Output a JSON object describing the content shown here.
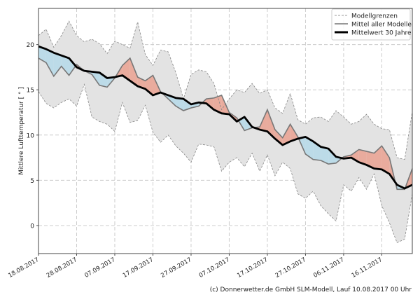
{
  "footer": "(c) Donnerwetter.de GmbH SLM-Modell, Lauf 10.08.2017 00 Uhr",
  "chart_data": {
    "type": "line",
    "title": "",
    "xlabel": "",
    "ylabel": "Mittlere Lufttemperatur [ ° ]",
    "xlim": [
      "18.08.2017",
      "24.11.2017"
    ],
    "ylim": [
      -3.1,
      24
    ],
    "y_ticks": [
      0,
      5,
      10,
      15,
      20
    ],
    "x_ticks": [
      "18.08.2017",
      "28.08.2017",
      "07.09.2017",
      "17.09.2017",
      "27.09.2017",
      "07.10.2017",
      "17.10.2017",
      "27.10.2017",
      "06.11.2017",
      "16.11.2017"
    ],
    "grid": true,
    "legend_position": "top-right",
    "colors": {
      "below": "#bcdbe8",
      "above": "#e9ab9d",
      "band": "#e3e3e3",
      "model": "#777777",
      "mean30": "#000000"
    },
    "x": [
      "18.08.2017",
      "20.08.2017",
      "22.08.2017",
      "24.08.2017",
      "26.08.2017",
      "28.08.2017",
      "30.08.2017",
      "01.09.2017",
      "03.09.2017",
      "05.09.2017",
      "07.09.2017",
      "09.09.2017",
      "11.09.2017",
      "13.09.2017",
      "15.09.2017",
      "17.09.2017",
      "19.09.2017",
      "21.09.2017",
      "23.09.2017",
      "25.09.2017",
      "27.09.2017",
      "29.09.2017",
      "01.10.2017",
      "03.10.2017",
      "05.10.2017",
      "07.10.2017",
      "09.10.2017",
      "11.10.2017",
      "13.10.2017",
      "15.10.2017",
      "17.10.2017",
      "19.10.2017",
      "21.10.2017",
      "23.10.2017",
      "25.10.2017",
      "27.10.2017",
      "29.10.2017",
      "31.10.2017",
      "02.11.2017",
      "04.11.2017",
      "06.11.2017",
      "08.11.2017",
      "10.11.2017",
      "12.11.2017",
      "14.11.2017",
      "16.11.2017",
      "18.11.2017",
      "20.11.2017",
      "22.11.2017",
      "24.11.2017"
    ],
    "series": [
      {
        "name": "Modellgrenzen",
        "role": "upper",
        "values": [
          21,
          21.7,
          19.7,
          21.0,
          22.6,
          21.0,
          20.3,
          20.6,
          20.1,
          19.0,
          20.4,
          20.0,
          19.6,
          22.5,
          18.9,
          17.7,
          19.4,
          19.2,
          16.9,
          14.0,
          16.7,
          17.2,
          17.0,
          15.7,
          12.8,
          14.0,
          15.0,
          14.7,
          15.7,
          14.6,
          15.0,
          13.0,
          12.4,
          14.6,
          11.7,
          11.2,
          11.9,
          12.0,
          11.5,
          12.7,
          12.0,
          11.2,
          11.5,
          12.3,
          11.2,
          10.7,
          10.6,
          7.5,
          7.3,
          12.6
        ]
      },
      {
        "name": "Modellgrenzen",
        "role": "lower",
        "values": [
          14.8,
          13.5,
          13.0,
          13.6,
          14.0,
          13.2,
          15.6,
          12.0,
          11.5,
          11.2,
          10.4,
          13.6,
          11.4,
          11.6,
          13.3,
          10.3,
          9.2,
          10.0,
          8.8,
          8.0,
          7.0,
          9.0,
          8.9,
          8.7,
          6.0,
          7.0,
          7.5,
          6.5,
          8.0,
          6.0,
          7.8,
          5.5,
          7.0,
          6.3,
          3.5,
          3.0,
          3.8,
          2.2,
          1.3,
          0.5,
          4.5,
          3.8,
          5.3,
          4.0,
          5.7,
          2.2,
          0.3,
          -1.9,
          -1.5,
          3.5
        ]
      },
      {
        "name": "Mittel aller Modelle",
        "values": [
          18.5,
          18.0,
          16.5,
          17.6,
          16.6,
          17.8,
          17.1,
          16.7,
          15.5,
          15.3,
          16.3,
          17.7,
          18.5,
          16.4,
          16.0,
          16.6,
          14.8,
          14.0,
          13.2,
          12.7,
          13.0,
          13.2,
          14.0,
          14.1,
          14.4,
          12.5,
          11.9,
          10.5,
          10.8,
          10.9,
          12.8,
          10.6,
          9.7,
          11.2,
          9.8,
          7.9,
          7.3,
          7.2,
          6.8,
          6.9,
          7.6,
          7.8,
          8.4,
          8.2,
          8.0,
          8.8,
          7.5,
          4.0,
          4.0,
          6.3
        ]
      },
      {
        "name": "Mittelwert 30 Jahre",
        "values": [
          19.8,
          19.5,
          19.1,
          18.8,
          18.5,
          17.5,
          17.1,
          17.0,
          16.9,
          16.3,
          16.4,
          16.6,
          16.0,
          15.4,
          15.1,
          14.4,
          14.7,
          14.4,
          14.1,
          14.0,
          13.4,
          13.6,
          13.5,
          12.8,
          12.4,
          12.3,
          11.5,
          12.0,
          10.9,
          10.6,
          10.4,
          9.6,
          8.9,
          9.3,
          9.6,
          9.8,
          9.3,
          8.7,
          8.5,
          7.6,
          7.4,
          7.5,
          7.0,
          6.7,
          6.3,
          6.2,
          5.7,
          4.5,
          4.1,
          4.5
        ]
      }
    ]
  }
}
